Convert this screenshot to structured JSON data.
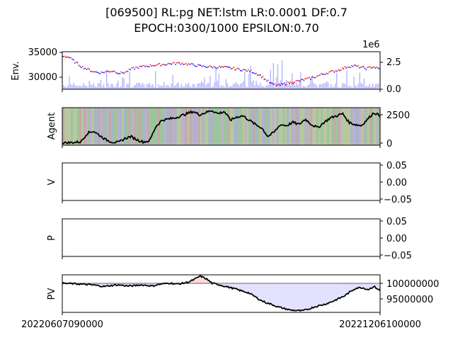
{
  "title_line1": "[069500] RL:pg NET:lstm LR:0.0001 DF:0.7",
  "title_line2": "EPOCH:0300/1000 EPSILON:0.70",
  "x_tick_labels": [
    "20220607090000",
    "20221206100000"
  ],
  "colors": {
    "price_up": "#ff0000",
    "price_down": "#0000ff",
    "volume": "#b4b4ff",
    "line": "#000000",
    "pv_fill": "#e0e0ff",
    "pv_fill_up": "#ffd6d6",
    "baseline": "#808080",
    "agent_strip_palette": [
      "#9ec49e",
      "#c4a8a8",
      "#a8b4cc",
      "#b8c89e",
      "#c0b0c8"
    ]
  },
  "chart_data": [
    {
      "type": "candlestick",
      "ylabel": "Env.",
      "yticks": [
        30000,
        35000
      ],
      "ylim": [
        27500,
        35500
      ],
      "secondary_axis_label": "1e6",
      "secondary_yticks": [
        "0.0",
        "2.5"
      ],
      "secondary_ylim": [
        0,
        3600000
      ],
      "price_series": [
        34600,
        34300,
        33200,
        32300,
        31700,
        31200,
        31000,
        31300,
        31400,
        30900,
        31200,
        31900,
        32200,
        32400,
        32600,
        32700,
        32800,
        32950,
        33050,
        33000,
        32800,
        32600,
        32400,
        32300,
        32200,
        32200,
        32100,
        31900,
        31700,
        31500,
        31200,
        30600,
        29600,
        28600,
        28300,
        28600,
        28900,
        29200,
        29500,
        29800,
        30200,
        30700,
        31100,
        31400,
        31800,
        32300,
        32500,
        32200,
        31900,
        32300,
        31800
      ]
    },
    {
      "type": "line",
      "ylabel": "Agent",
      "yticks": [
        0,
        2500
      ],
      "ylim": [
        -200,
        3250
      ],
      "values": [
        0,
        30,
        60,
        120,
        900,
        1100,
        700,
        300,
        100,
        50,
        400,
        600,
        300,
        100,
        200,
        1500,
        2100,
        2200,
        2300,
        2500,
        2700,
        2900,
        2600,
        2800,
        3000,
        2700,
        2900,
        2100,
        2400,
        2500,
        2100,
        1700,
        1400,
        600,
        1000,
        1700,
        1600,
        1900,
        1700,
        2200,
        1700,
        1400,
        1900,
        2300,
        2500,
        2700,
        1900,
        1700,
        1600,
        2200,
        2800,
        2500
      ]
    },
    {
      "type": "line",
      "ylabel": "V",
      "yticks": [
        "0.05",
        "0.00",
        "−0.05"
      ],
      "ylim": [
        -0.055,
        0.055
      ],
      "values": []
    },
    {
      "type": "line",
      "ylabel": "P",
      "yticks": [
        "0.05",
        "0.00",
        "−0.05"
      ],
      "ylim": [
        -0.055,
        0.055
      ],
      "values": []
    },
    {
      "type": "area",
      "ylabel": "PV",
      "yticks": [
        95000000,
        100000000
      ],
      "ytick_labels": [
        "95000000",
        "100000000"
      ],
      "ylim": [
        92500000,
        102200000
      ],
      "baseline": 100000000,
      "values": [
        100000000,
        99950000,
        99900000,
        99800000,
        99700000,
        99600000,
        99400000,
        99200000,
        99400000,
        99600000,
        99500000,
        99300000,
        99400000,
        99600000,
        99500000,
        99300000,
        99700000,
        99900000,
        100100000,
        99800000,
        100000000,
        100300000,
        101000000,
        101900000,
        101200000,
        100000000,
        99700000,
        99300000,
        98900000,
        98500000,
        98000000,
        97600000,
        96700000,
        95700000,
        95000000,
        94500000,
        93900000,
        93500000,
        93100000,
        93000000,
        92900000,
        93300000,
        93900000,
        94300000,
        94700000,
        95300000,
        96000000,
        96700000,
        97800000,
        98800000,
        98900000,
        98400000,
        99200000,
        98100000
      ]
    }
  ]
}
